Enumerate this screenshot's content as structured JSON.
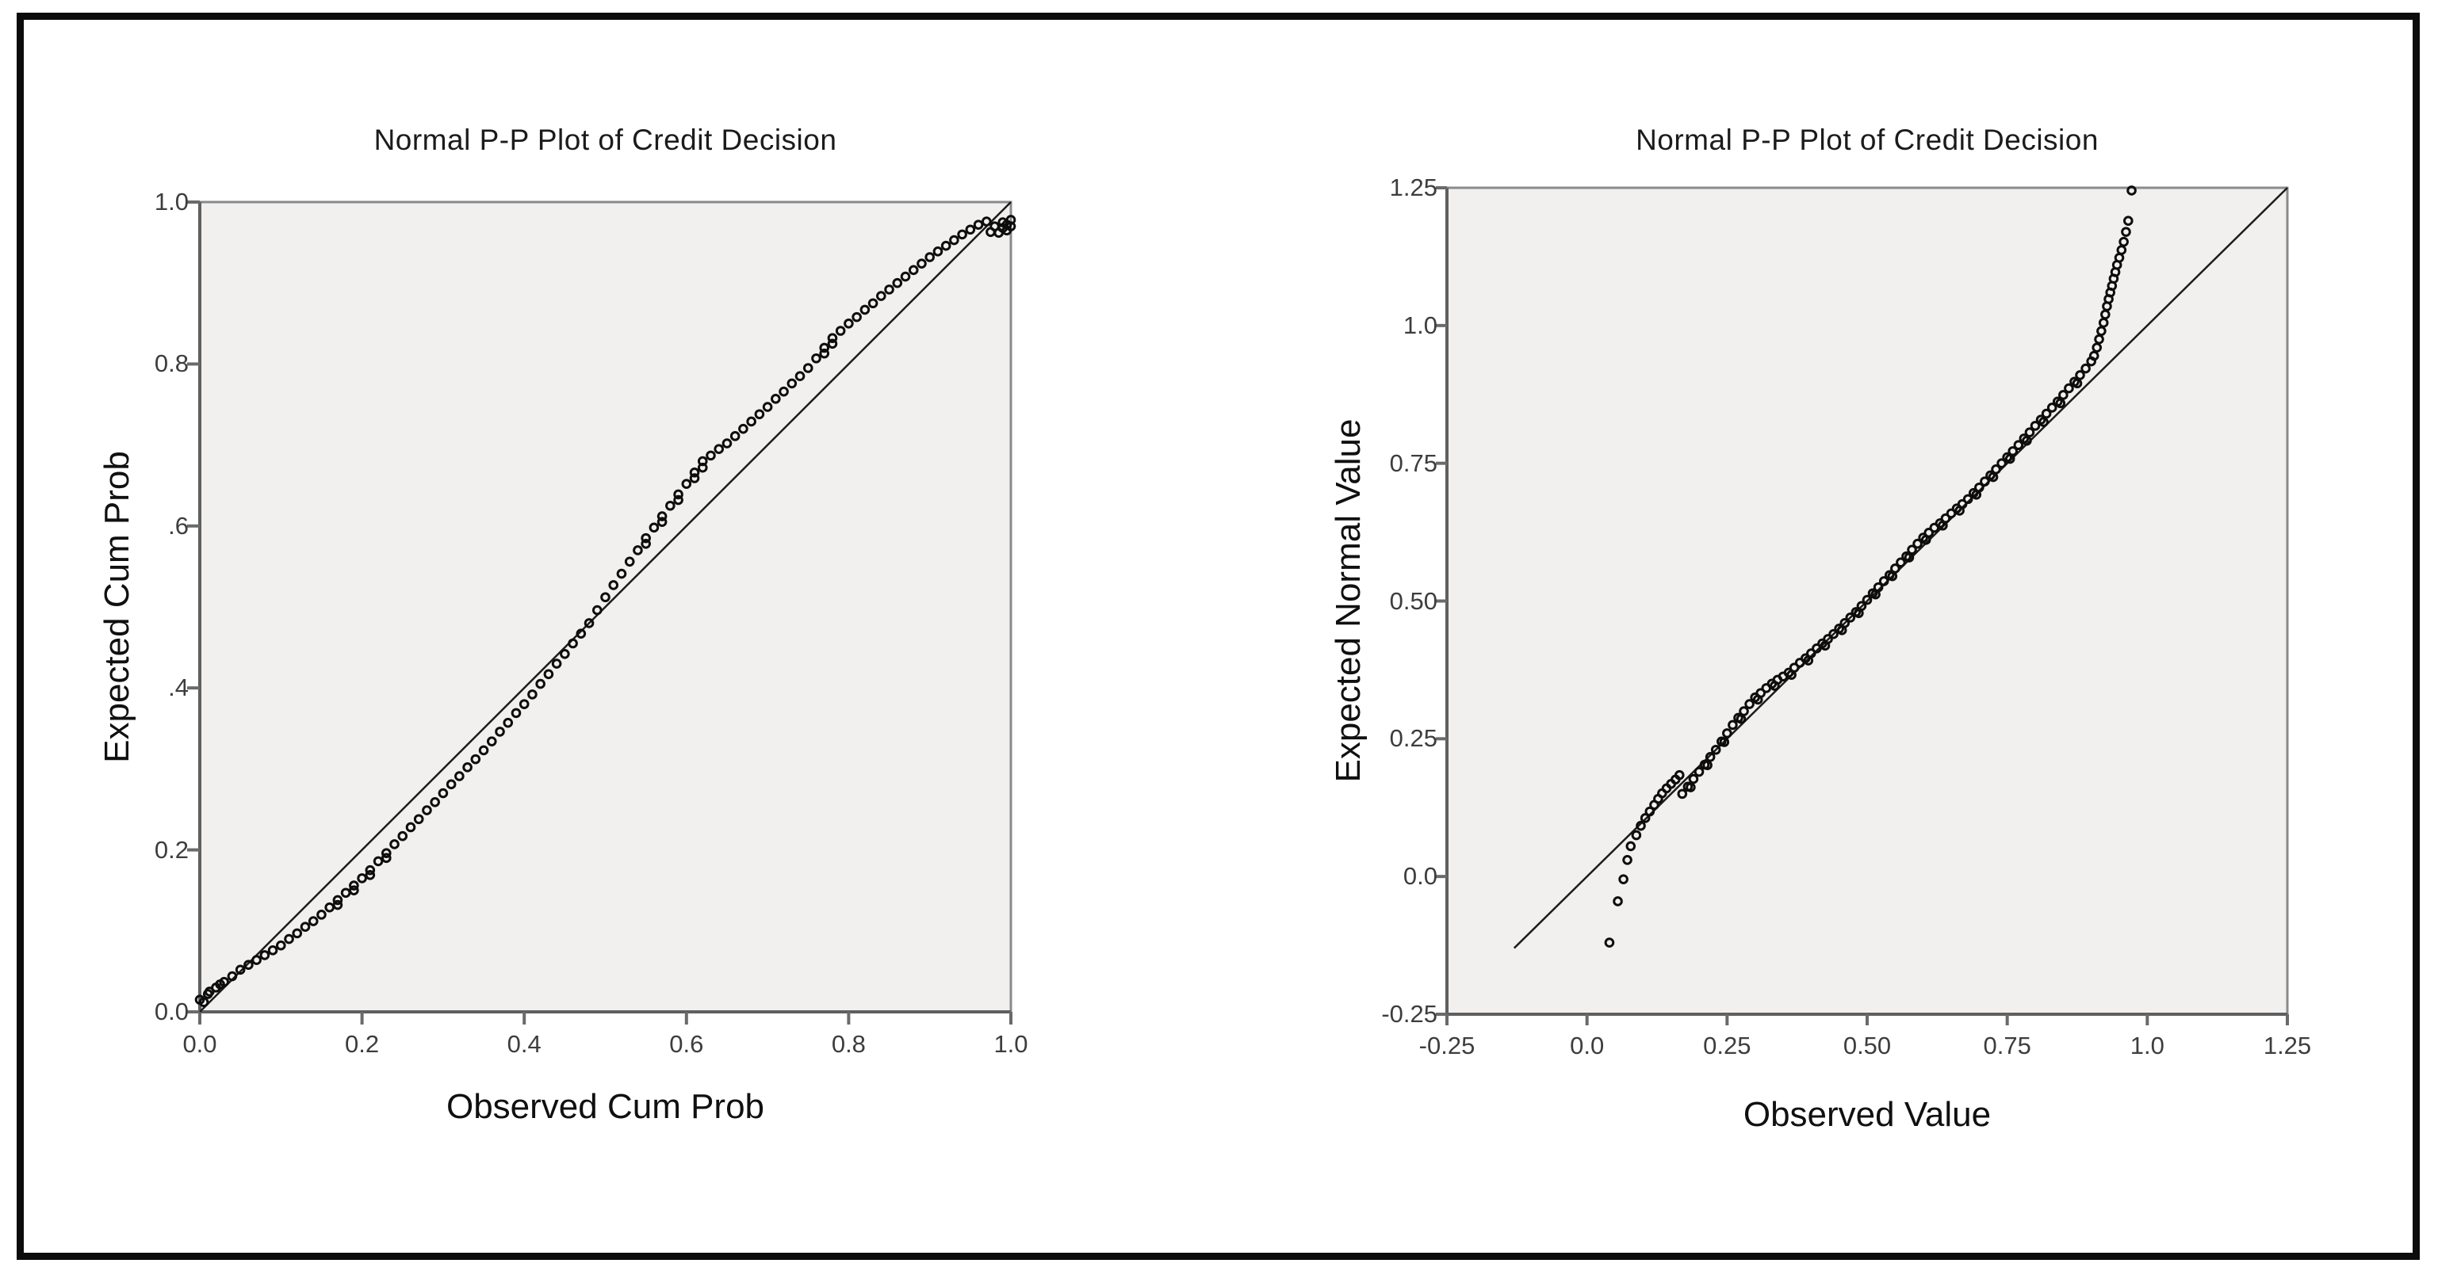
{
  "figure": {
    "background": "#ffffff",
    "frame_border_color": "#0c0c0c"
  },
  "colors": {
    "plot_background": "#f1f0ee",
    "plot_border": "#8a8a8a",
    "axis_line": "#5f5f5f",
    "tick_mark": "#6a6a6a",
    "tick_label": "#3d3d3d",
    "reference_line": "#1c1c1c",
    "marker": "#0d0d0d",
    "title_text": "#1b1b1b",
    "axis_label_text": "#101010"
  },
  "chart_data": [
    {
      "type": "scatter",
      "title": "Normal P-P Plot of Credit Decision",
      "xlabel": "Observed Cum Prob",
      "ylabel": "Expected Cum Prob",
      "xlim": [
        0,
        1
      ],
      "ylim": [
        0,
        1
      ],
      "x_tick_labels": [
        "0.0",
        "0.2",
        "0.4",
        "0.6",
        "0.8",
        "1.0"
      ],
      "x_tick_values": [
        0,
        0.2,
        0.4,
        0.6,
        0.8,
        1.0
      ],
      "y_tick_labels": [
        "1.0",
        "0.8",
        ".6",
        ".4",
        "0.2",
        "0.0"
      ],
      "y_tick_values": [
        1.0,
        0.8,
        0.6,
        0.4,
        0.2,
        0.0
      ],
      "grid": false,
      "legend": "none",
      "marker": "open-circle",
      "reference_line": {
        "from": [
          0,
          0
        ],
        "to": [
          1,
          1
        ]
      },
      "points": [
        [
          0.0,
          0.015
        ],
        [
          0.01,
          0.022
        ],
        [
          0.02,
          0.03
        ],
        [
          0.03,
          0.037
        ],
        [
          0.04,
          0.044
        ],
        [
          0.05,
          0.052
        ],
        [
          0.06,
          0.058
        ],
        [
          0.07,
          0.064
        ],
        [
          0.08,
          0.07
        ],
        [
          0.09,
          0.076
        ],
        [
          0.1,
          0.082
        ],
        [
          0.11,
          0.09
        ],
        [
          0.12,
          0.097
        ],
        [
          0.13,
          0.105
        ],
        [
          0.14,
          0.112
        ],
        [
          0.15,
          0.12
        ],
        [
          0.16,
          0.129
        ],
        [
          0.17,
          0.138
        ],
        [
          0.18,
          0.147
        ],
        [
          0.19,
          0.156
        ],
        [
          0.2,
          0.165
        ],
        [
          0.21,
          0.175
        ],
        [
          0.22,
          0.186
        ],
        [
          0.23,
          0.196
        ],
        [
          0.24,
          0.207
        ],
        [
          0.25,
          0.217
        ],
        [
          0.26,
          0.228
        ],
        [
          0.27,
          0.238
        ],
        [
          0.28,
          0.249
        ],
        [
          0.29,
          0.259
        ],
        [
          0.3,
          0.27
        ],
        [
          0.31,
          0.281
        ],
        [
          0.32,
          0.291
        ],
        [
          0.33,
          0.302
        ],
        [
          0.34,
          0.312
        ],
        [
          0.35,
          0.323
        ],
        [
          0.36,
          0.334
        ],
        [
          0.37,
          0.346
        ],
        [
          0.38,
          0.357
        ],
        [
          0.39,
          0.369
        ],
        [
          0.4,
          0.38
        ],
        [
          0.41,
          0.392
        ],
        [
          0.42,
          0.405
        ],
        [
          0.43,
          0.417
        ],
        [
          0.44,
          0.43
        ],
        [
          0.45,
          0.442
        ],
        [
          0.46,
          0.455
        ],
        [
          0.47,
          0.467
        ],
        [
          0.48,
          0.48
        ],
        [
          0.49,
          0.496
        ],
        [
          0.5,
          0.512
        ],
        [
          0.51,
          0.527
        ],
        [
          0.52,
          0.541
        ],
        [
          0.53,
          0.556
        ],
        [
          0.54,
          0.57
        ],
        [
          0.55,
          0.585
        ],
        [
          0.56,
          0.598
        ],
        [
          0.57,
          0.612
        ],
        [
          0.58,
          0.625
        ],
        [
          0.59,
          0.639
        ],
        [
          0.6,
          0.652
        ],
        [
          0.61,
          0.666
        ],
        [
          0.62,
          0.68
        ],
        [
          0.63,
          0.687
        ],
        [
          0.64,
          0.695
        ],
        [
          0.65,
          0.702
        ],
        [
          0.66,
          0.711
        ],
        [
          0.67,
          0.72
        ],
        [
          0.68,
          0.729
        ],
        [
          0.69,
          0.738
        ],
        [
          0.7,
          0.747
        ],
        [
          0.71,
          0.757
        ],
        [
          0.72,
          0.766
        ],
        [
          0.73,
          0.776
        ],
        [
          0.74,
          0.785
        ],
        [
          0.75,
          0.795
        ],
        [
          0.76,
          0.807
        ],
        [
          0.77,
          0.82
        ],
        [
          0.78,
          0.832
        ],
        [
          0.79,
          0.841
        ],
        [
          0.8,
          0.85
        ],
        [
          0.81,
          0.858
        ],
        [
          0.82,
          0.867
        ],
        [
          0.83,
          0.875
        ],
        [
          0.84,
          0.884
        ],
        [
          0.85,
          0.892
        ],
        [
          0.86,
          0.9
        ],
        [
          0.87,
          0.908
        ],
        [
          0.88,
          0.916
        ],
        [
          0.89,
          0.924
        ],
        [
          0.9,
          0.932
        ],
        [
          0.91,
          0.939
        ],
        [
          0.92,
          0.946
        ],
        [
          0.93,
          0.953
        ],
        [
          0.94,
          0.96
        ],
        [
          0.95,
          0.966
        ],
        [
          0.96,
          0.972
        ],
        [
          0.97,
          0.976
        ],
        [
          0.98,
          0.97
        ],
        [
          0.99,
          0.968
        ],
        [
          1.0,
          0.97
        ],
        [
          0.005,
          0.012
        ],
        [
          0.012,
          0.025
        ],
        [
          0.025,
          0.034
        ],
        [
          0.17,
          0.132
        ],
        [
          0.19,
          0.15
        ],
        [
          0.21,
          0.169
        ],
        [
          0.23,
          0.19
        ],
        [
          0.55,
          0.578
        ],
        [
          0.57,
          0.605
        ],
        [
          0.59,
          0.632
        ],
        [
          0.61,
          0.659
        ],
        [
          0.62,
          0.672
        ],
        [
          0.77,
          0.813
        ],
        [
          0.78,
          0.825
        ],
        [
          0.975,
          0.963
        ],
        [
          0.985,
          0.962
        ],
        [
          0.99,
          0.975
        ],
        [
          0.995,
          0.965
        ],
        [
          0.995,
          0.972
        ],
        [
          1.0,
          0.978
        ]
      ]
    },
    {
      "type": "scatter",
      "title": "Normal P-P Plot of Credit Decision",
      "xlabel": "Observed Value",
      "ylabel": "Expected Normal Value",
      "xlim": [
        -0.25,
        1.25
      ],
      "ylim": [
        -0.25,
        1.25
      ],
      "x_tick_labels": [
        "-0.25",
        "0.0",
        "0.25",
        "0.50",
        "0.75",
        "1.0",
        "1.25"
      ],
      "x_tick_values": [
        -0.25,
        0,
        0.25,
        0.5,
        0.75,
        1.0,
        1.25
      ],
      "y_tick_labels": [
        "1.25",
        "1.0",
        "0.75",
        "0.50",
        "0.25",
        "0.0",
        "-0.25"
      ],
      "y_tick_values": [
        1.25,
        1.0,
        0.75,
        0.5,
        0.25,
        0.0,
        -0.25
      ],
      "grid": false,
      "legend": "none",
      "marker": "open-circle",
      "reference_line": {
        "from": [
          -0.13,
          -0.13
        ],
        "to": [
          1.25,
          1.25
        ]
      },
      "points": [
        [
          0.04,
          -0.12
        ],
        [
          0.055,
          -0.045
        ],
        [
          0.065,
          -0.005
        ],
        [
          0.072,
          0.03
        ],
        [
          0.078,
          0.055
        ],
        [
          0.088,
          0.075
        ],
        [
          0.096,
          0.092
        ],
        [
          0.104,
          0.106
        ],
        [
          0.112,
          0.118
        ],
        [
          0.12,
          0.13
        ],
        [
          0.127,
          0.141
        ],
        [
          0.134,
          0.151
        ],
        [
          0.142,
          0.16
        ],
        [
          0.15,
          0.168
        ],
        [
          0.158,
          0.176
        ],
        [
          0.165,
          0.184
        ],
        [
          0.17,
          0.15
        ],
        [
          0.18,
          0.163
        ],
        [
          0.19,
          0.177
        ],
        [
          0.2,
          0.19
        ],
        [
          0.21,
          0.203
        ],
        [
          0.22,
          0.217
        ],
        [
          0.23,
          0.23
        ],
        [
          0.24,
          0.245
        ],
        [
          0.25,
          0.26
        ],
        [
          0.26,
          0.275
        ],
        [
          0.27,
          0.288
        ],
        [
          0.28,
          0.3
        ],
        [
          0.29,
          0.313
        ],
        [
          0.3,
          0.325
        ],
        [
          0.31,
          0.333
        ],
        [
          0.32,
          0.342
        ],
        [
          0.33,
          0.35
        ],
        [
          0.34,
          0.357
        ],
        [
          0.35,
          0.363
        ],
        [
          0.36,
          0.37
        ],
        [
          0.37,
          0.379
        ],
        [
          0.38,
          0.388
        ],
        [
          0.39,
          0.396
        ],
        [
          0.4,
          0.405
        ],
        [
          0.41,
          0.414
        ],
        [
          0.42,
          0.423
        ],
        [
          0.43,
          0.431
        ],
        [
          0.44,
          0.44
        ],
        [
          0.45,
          0.45
        ],
        [
          0.46,
          0.46
        ],
        [
          0.47,
          0.47
        ],
        [
          0.48,
          0.48
        ],
        [
          0.49,
          0.491
        ],
        [
          0.5,
          0.502
        ],
        [
          0.51,
          0.514
        ],
        [
          0.52,
          0.525
        ],
        [
          0.53,
          0.536
        ],
        [
          0.54,
          0.547
        ],
        [
          0.55,
          0.559
        ],
        [
          0.56,
          0.57
        ],
        [
          0.57,
          0.581
        ],
        [
          0.58,
          0.593
        ],
        [
          0.59,
          0.604
        ],
        [
          0.6,
          0.615
        ],
        [
          0.61,
          0.624
        ],
        [
          0.62,
          0.633
        ],
        [
          0.63,
          0.641
        ],
        [
          0.64,
          0.65
        ],
        [
          0.65,
          0.659
        ],
        [
          0.66,
          0.668
        ],
        [
          0.67,
          0.676
        ],
        [
          0.68,
          0.685
        ],
        [
          0.69,
          0.696
        ],
        [
          0.7,
          0.706
        ],
        [
          0.71,
          0.717
        ],
        [
          0.72,
          0.728
        ],
        [
          0.73,
          0.739
        ],
        [
          0.74,
          0.75
        ],
        [
          0.75,
          0.761
        ],
        [
          0.76,
          0.772
        ],
        [
          0.77,
          0.783
        ],
        [
          0.78,
          0.795
        ],
        [
          0.79,
          0.806
        ],
        [
          0.8,
          0.818
        ],
        [
          0.81,
          0.829
        ],
        [
          0.82,
          0.84
        ],
        [
          0.83,
          0.851
        ],
        [
          0.84,
          0.862
        ],
        [
          0.85,
          0.874
        ],
        [
          0.86,
          0.886
        ],
        [
          0.87,
          0.898
        ],
        [
          0.88,
          0.91
        ],
        [
          0.89,
          0.922
        ],
        [
          0.9,
          0.935
        ],
        [
          0.185,
          0.162
        ],
        [
          0.215,
          0.202
        ],
        [
          0.245,
          0.244
        ],
        [
          0.275,
          0.286
        ],
        [
          0.305,
          0.321
        ],
        [
          0.335,
          0.346
        ],
        [
          0.365,
          0.366
        ],
        [
          0.395,
          0.392
        ],
        [
          0.425,
          0.419
        ],
        [
          0.455,
          0.447
        ],
        [
          0.485,
          0.478
        ],
        [
          0.515,
          0.512
        ],
        [
          0.545,
          0.545
        ],
        [
          0.575,
          0.579
        ],
        [
          0.605,
          0.611
        ],
        [
          0.635,
          0.637
        ],
        [
          0.665,
          0.664
        ],
        [
          0.695,
          0.693
        ],
        [
          0.725,
          0.725
        ],
        [
          0.755,
          0.758
        ],
        [
          0.785,
          0.791
        ],
        [
          0.815,
          0.825
        ],
        [
          0.845,
          0.859
        ],
        [
          0.875,
          0.895
        ],
        [
          0.905,
          0.945
        ],
        [
          0.91,
          0.96
        ],
        [
          0.914,
          0.975
        ],
        [
          0.918,
          0.99
        ],
        [
          0.922,
          1.005
        ],
        [
          0.925,
          1.02
        ],
        [
          0.928,
          1.035
        ],
        [
          0.931,
          1.048
        ],
        [
          0.934,
          1.06
        ],
        [
          0.937,
          1.072
        ],
        [
          0.94,
          1.085
        ],
        [
          0.943,
          1.097
        ],
        [
          0.946,
          1.11
        ],
        [
          0.95,
          1.123
        ],
        [
          0.954,
          1.137
        ],
        [
          0.958,
          1.152
        ],
        [
          0.962,
          1.17
        ],
        [
          0.966,
          1.19
        ],
        [
          0.972,
          1.245
        ]
      ]
    }
  ]
}
